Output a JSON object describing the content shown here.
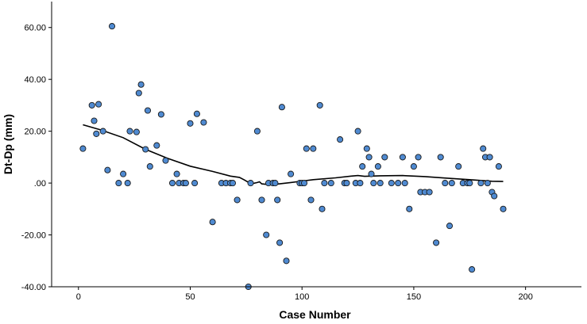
{
  "chart_data": {
    "type": "scatter",
    "xlabel": "Case Number",
    "ylabel": "Dt-Dp (mm)",
    "xlim": [
      -12,
      225
    ],
    "ylim": [
      -40,
      70
    ],
    "x_ticks": [
      0,
      50,
      100,
      150,
      200
    ],
    "x_tick_labels": [
      "0",
      "50",
      "100",
      "150",
      "200"
    ],
    "y_ticks": [
      60,
      40,
      20,
      0,
      -20,
      -40
    ],
    "y_tick_labels": [
      "60.00",
      "40.00",
      "20.00",
      ".00",
      "-20.00",
      "-40.00"
    ],
    "grid": false,
    "point_color": "#4f8ad1",
    "point_edge_color": "#1a1a1a",
    "fit_line_color": "#000000",
    "points": [
      [
        2,
        13.3
      ],
      [
        6,
        30
      ],
      [
        7,
        24
      ],
      [
        8,
        19
      ],
      [
        9,
        30.4
      ],
      [
        11,
        20
      ],
      [
        13,
        5
      ],
      [
        15,
        60.5
      ],
      [
        18,
        0
      ],
      [
        20,
        3.5
      ],
      [
        22,
        0
      ],
      [
        23,
        20
      ],
      [
        26,
        19.7
      ],
      [
        27,
        34.7
      ],
      [
        28,
        38
      ],
      [
        30,
        13
      ],
      [
        31,
        28
      ],
      [
        32,
        6.4
      ],
      [
        35,
        14.5
      ],
      [
        37,
        26.5
      ],
      [
        39,
        8.7
      ],
      [
        42,
        0
      ],
      [
        44,
        3.5
      ],
      [
        45,
        0
      ],
      [
        47,
        0
      ],
      [
        48,
        0
      ],
      [
        50,
        23
      ],
      [
        52,
        0
      ],
      [
        53,
        26.7
      ],
      [
        56,
        23.4
      ],
      [
        60,
        -15
      ],
      [
        64,
        0
      ],
      [
        66,
        0
      ],
      [
        68,
        0
      ],
      [
        69,
        0
      ],
      [
        71,
        -6.5
      ],
      [
        76,
        -40
      ],
      [
        77,
        0
      ],
      [
        80,
        20
      ],
      [
        82,
        -6.5
      ],
      [
        84,
        -20
      ],
      [
        85,
        0
      ],
      [
        87,
        0
      ],
      [
        88,
        0
      ],
      [
        89,
        -6.5
      ],
      [
        90,
        -23
      ],
      [
        91,
        29.3
      ],
      [
        93,
        -30
      ],
      [
        95,
        3.5
      ],
      [
        99,
        0
      ],
      [
        100,
        0
      ],
      [
        101,
        0
      ],
      [
        102,
        13.3
      ],
      [
        104,
        -6.5
      ],
      [
        105,
        13.3
      ],
      [
        108,
        30
      ],
      [
        109,
        -10
      ],
      [
        110,
        0
      ],
      [
        113,
        0
      ],
      [
        117,
        16.8
      ],
      [
        119,
        0
      ],
      [
        120,
        0
      ],
      [
        124,
        0
      ],
      [
        125,
        20
      ],
      [
        126,
        0
      ],
      [
        127,
        6.4
      ],
      [
        129,
        13.3
      ],
      [
        130,
        10
      ],
      [
        131,
        3.5
      ],
      [
        132,
        0
      ],
      [
        134,
        6.4
      ],
      [
        135,
        0
      ],
      [
        137,
        10
      ],
      [
        140,
        0
      ],
      [
        143,
        0
      ],
      [
        145,
        10
      ],
      [
        146,
        0
      ],
      [
        148,
        -10
      ],
      [
        150,
        6.4
      ],
      [
        152,
        10
      ],
      [
        153,
        -3.5
      ],
      [
        155,
        -3.5
      ],
      [
        157,
        -3.5
      ],
      [
        160,
        -23
      ],
      [
        162,
        10
      ],
      [
        164,
        0
      ],
      [
        166,
        -16.5
      ],
      [
        167,
        0
      ],
      [
        170,
        6.4
      ],
      [
        172,
        0
      ],
      [
        174,
        0
      ],
      [
        175,
        0
      ],
      [
        176,
        -33.3
      ],
      [
        180,
        0
      ],
      [
        181,
        13.3
      ],
      [
        182,
        10
      ],
      [
        183,
        0
      ],
      [
        184,
        10
      ],
      [
        185,
        -3.5
      ],
      [
        186,
        -5
      ],
      [
        188,
        6.4
      ],
      [
        190,
        -10
      ]
    ],
    "fit_line": [
      [
        2,
        22.5
      ],
      [
        10,
        20.5
      ],
      [
        20,
        17.5
      ],
      [
        30,
        13
      ],
      [
        40,
        9.5
      ],
      [
        50,
        6.5
      ],
      [
        60,
        4.5
      ],
      [
        68,
        2.7
      ],
      [
        72,
        2.2
      ],
      [
        74,
        1.3
      ],
      [
        76,
        0.3
      ],
      [
        78,
        -0.2
      ],
      [
        80,
        0.2
      ],
      [
        81,
        0.5
      ],
      [
        82,
        -0.3
      ],
      [
        84,
        -0.5
      ],
      [
        88,
        -0.5
      ],
      [
        95,
        0.2
      ],
      [
        105,
        1.3
      ],
      [
        115,
        2.0
      ],
      [
        122,
        2.7
      ],
      [
        125,
        2.9
      ],
      [
        128,
        2.6
      ],
      [
        135,
        2.8
      ],
      [
        145,
        2.9
      ],
      [
        155,
        2.5
      ],
      [
        165,
        1.9
      ],
      [
        175,
        1.3
      ],
      [
        185,
        0.7
      ],
      [
        190,
        0.6
      ]
    ]
  }
}
